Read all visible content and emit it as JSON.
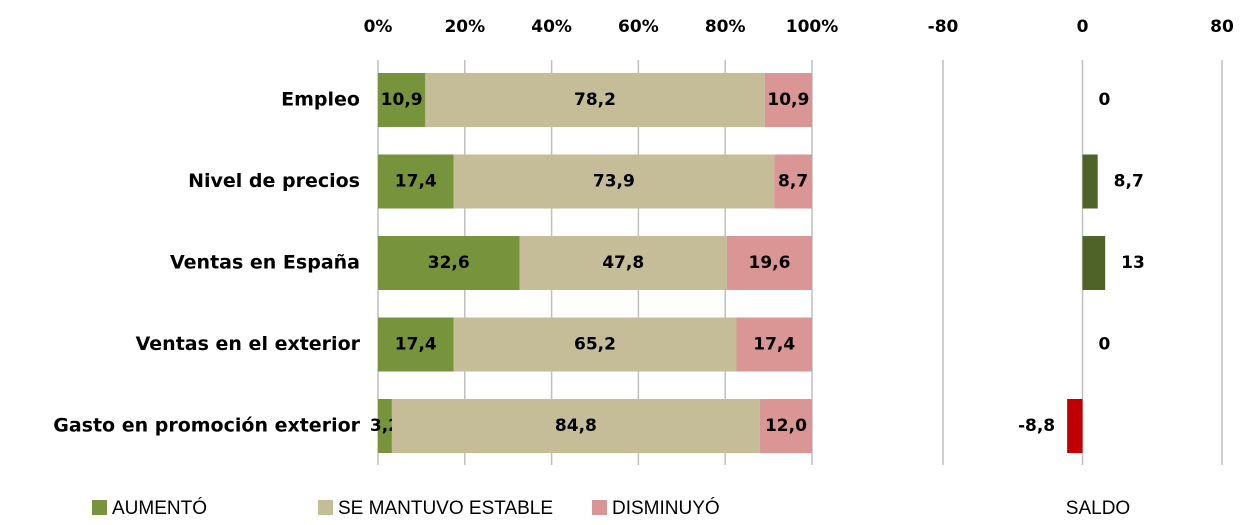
{
  "chart_data": [
    {
      "type": "stacked-bar-horizontal",
      "categories": [
        "Empleo",
        "Nivel de precios",
        "Ventas en España",
        "Ventas en el exterior",
        "Gasto en promoción exterior"
      ],
      "series": [
        {
          "name": "AUMENTÓ",
          "color": "#77933c",
          "values": [
            10.9,
            17.4,
            32.6,
            17.4,
            3.2
          ],
          "value_labels": [
            "10,9",
            "17,4",
            "32,6",
            "17,4",
            "3,2"
          ]
        },
        {
          "name": "SE MANTUVO ESTABLE",
          "color": "#c4bd97",
          "values": [
            78.2,
            73.9,
            47.8,
            65.2,
            84.8
          ],
          "value_labels": [
            "78,2",
            "73,9",
            "47,8",
            "65,2",
            "84,8"
          ]
        },
        {
          "name": "DISMINUYÓ",
          "color": "#d99694",
          "values": [
            10.9,
            8.7,
            19.6,
            17.4,
            12.0
          ],
          "value_labels": [
            "10,9",
            "8,7",
            "19,6",
            "17,4",
            "12,0"
          ]
        }
      ],
      "xlim": [
        0,
        100
      ],
      "xticks": [
        {
          "value": 0,
          "label": "0%"
        },
        {
          "value": 20,
          "label": "20%"
        },
        {
          "value": 40,
          "label": "40%"
        },
        {
          "value": 60,
          "label": "60%"
        },
        {
          "value": 80,
          "label": "80%"
        },
        {
          "value": 100,
          "label": "100%"
        }
      ],
      "grid": true
    },
    {
      "type": "bar-horizontal",
      "series": [
        {
          "name": "SALDO",
          "color": "#4f6228",
          "negative_color": "#c00000",
          "values": [
            0,
            8.7,
            13,
            0,
            -8.8
          ],
          "value_labels": [
            "0",
            "8,7",
            "13",
            "0",
            "-8,8"
          ]
        }
      ],
      "xlim": [
        -80,
        80
      ],
      "xticks": [
        -80,
        0,
        80
      ],
      "grid": true
    }
  ]
}
